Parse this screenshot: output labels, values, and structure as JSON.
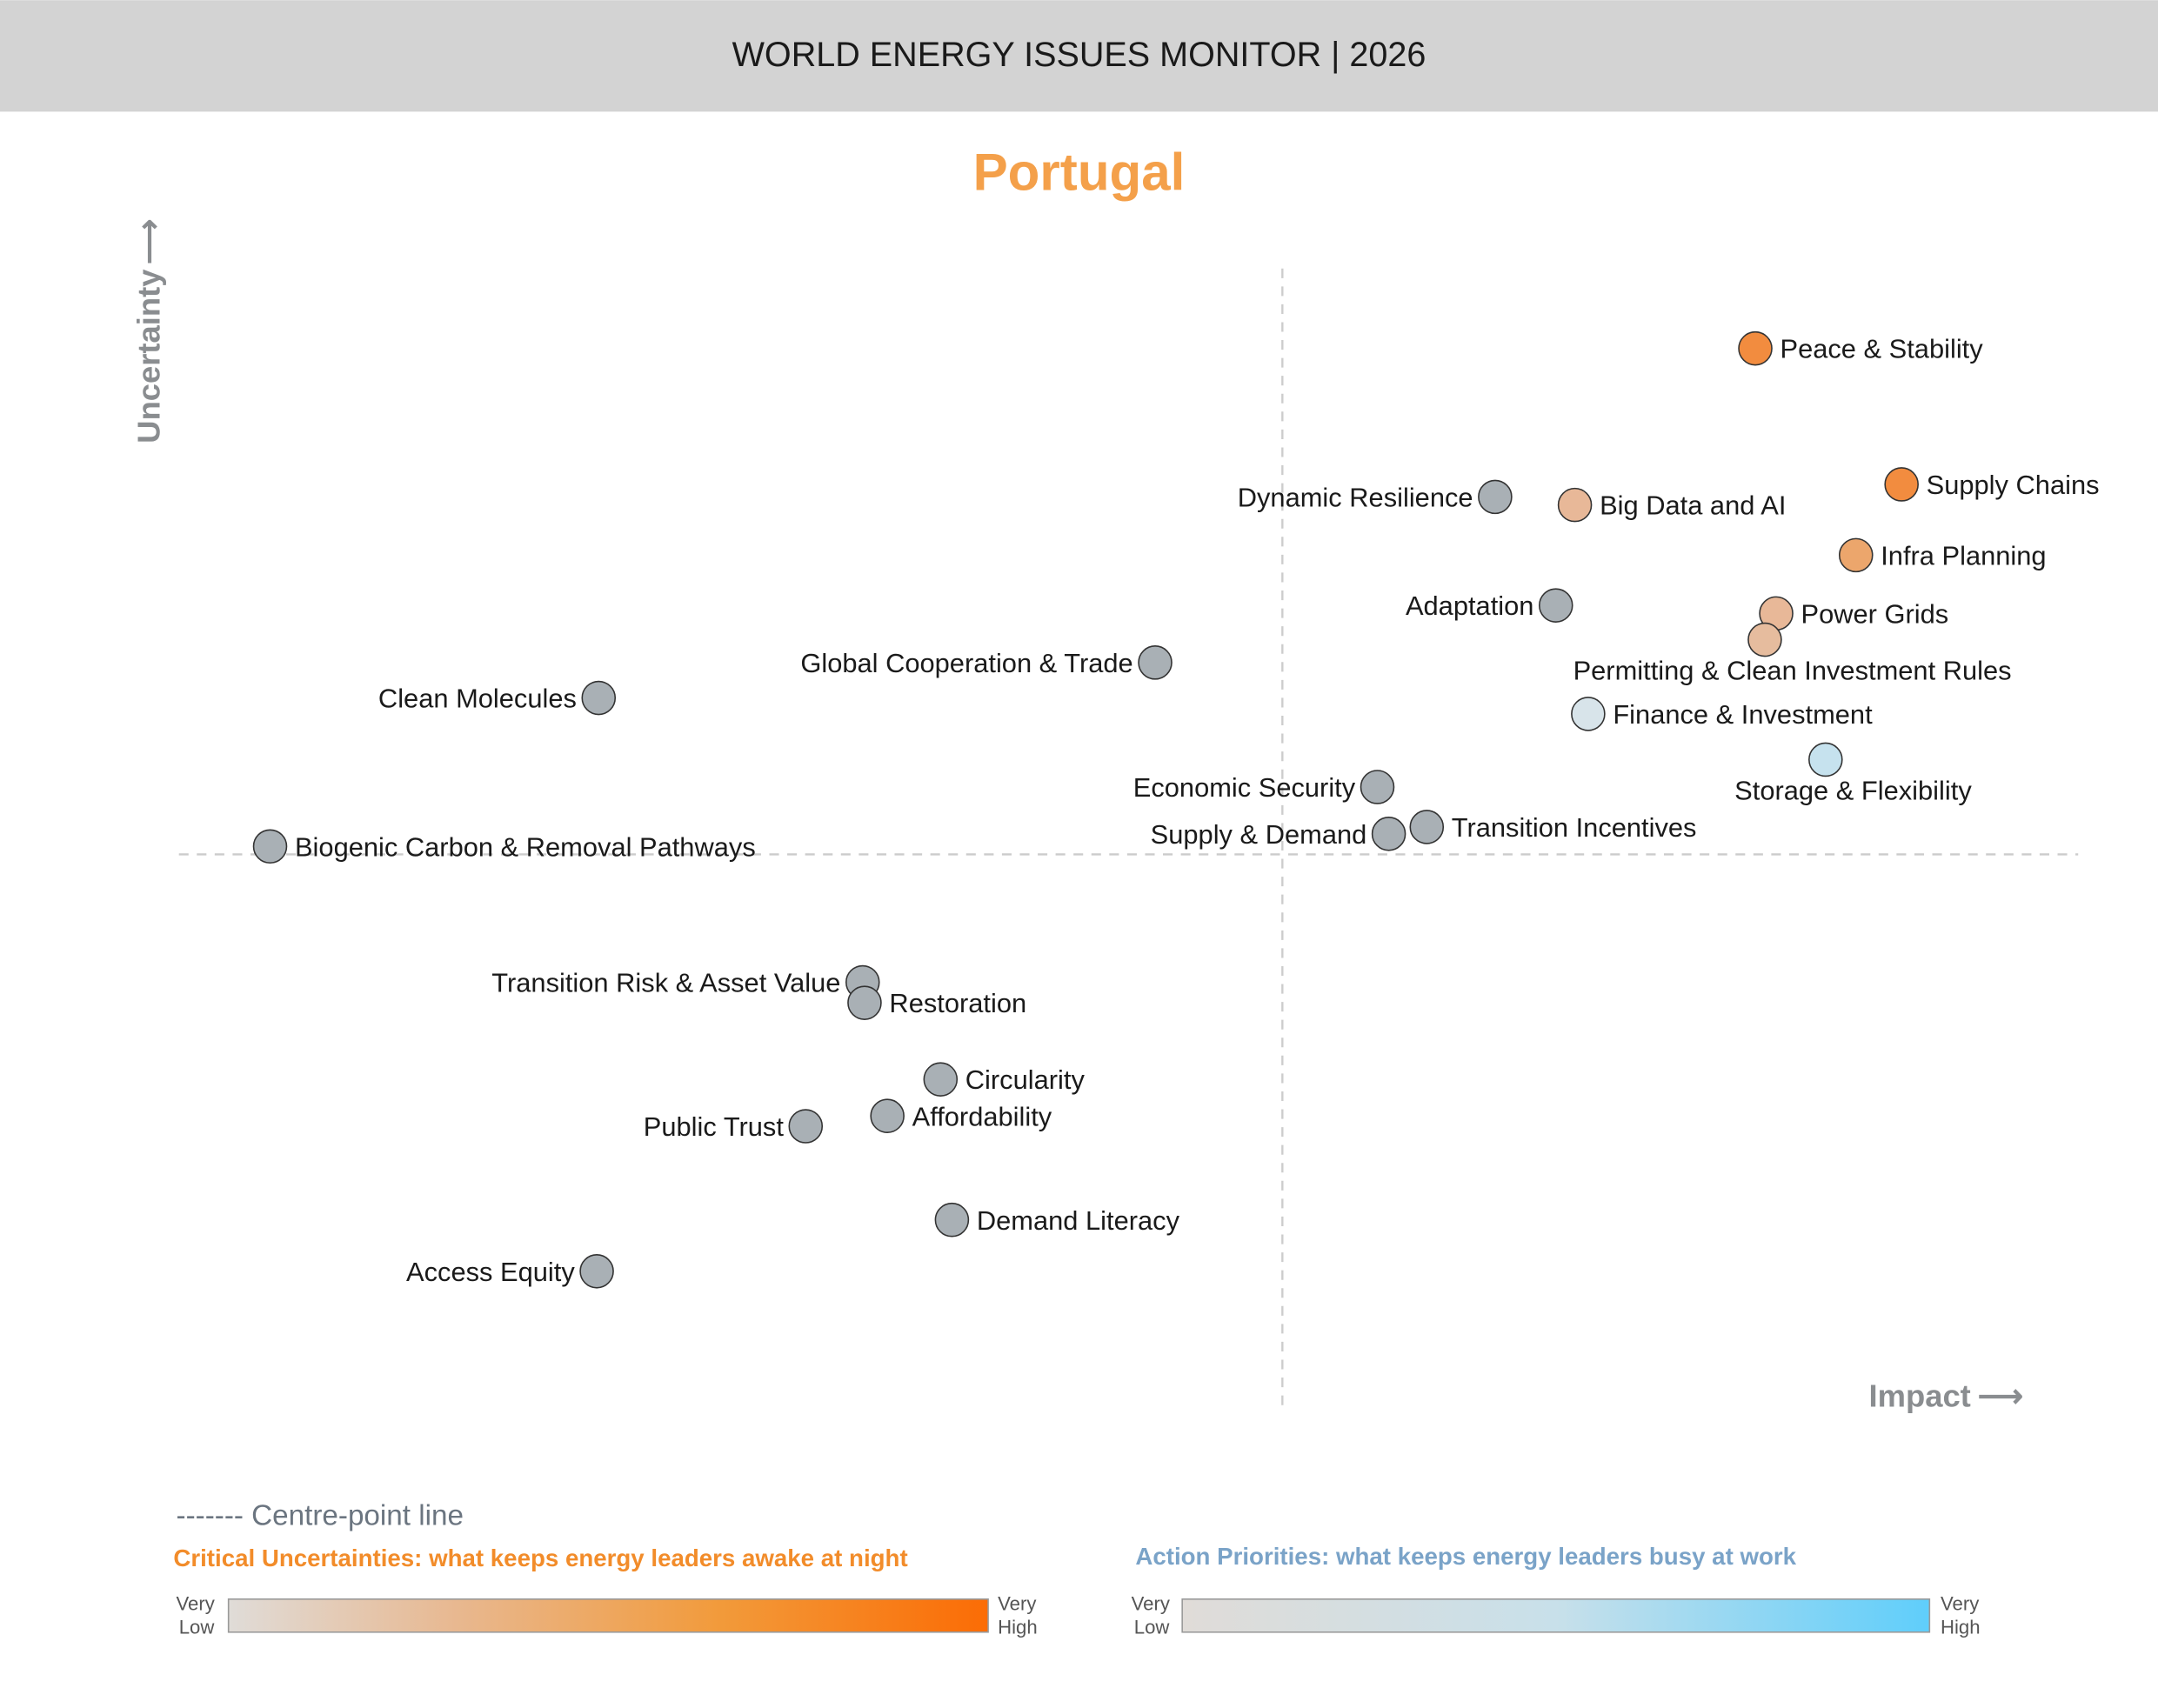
{
  "header": {
    "title": "WORLD ENERGY ISSUES MONITOR | 2026"
  },
  "chart_data": {
    "type": "scatter",
    "title": "Portugal",
    "xlabel": "Impact",
    "ylabel": "Uncertainty",
    "xlim": [
      0,
      100
    ],
    "ylim": [
      0,
      100
    ],
    "centre_point": {
      "x": 58.1,
      "y": 48.7
    },
    "grid": false,
    "points": [
      {
        "label": "Peace & Stability",
        "x": 83.0,
        "y": 93.0,
        "color": "#f28c3f",
        "label_side": "right"
      },
      {
        "label": "Supply Chains",
        "x": 90.7,
        "y": 81.1,
        "color": "#f28c3f",
        "label_side": "right"
      },
      {
        "label": "Dynamic Resilience",
        "x": 69.3,
        "y": 80.0,
        "color": "#a9b0b5",
        "label_side": "left"
      },
      {
        "label": "Big Data and AI",
        "x": 73.5,
        "y": 79.3,
        "color": "#e8b898",
        "label_side": "right"
      },
      {
        "label": "Infra Planning",
        "x": 88.3,
        "y": 74.9,
        "color": "#eca66c",
        "label_side": "right"
      },
      {
        "label": "Adaptation",
        "x": 72.5,
        "y": 70.5,
        "color": "#a9b0b5",
        "label_side": "left"
      },
      {
        "label": "Power Grids",
        "x": 84.1,
        "y": 69.8,
        "color": "#e8b898",
        "label_side": "right"
      },
      {
        "label": "Permitting & Clean Investment Rules",
        "x": 83.5,
        "y": 67.5,
        "color": "#e6bc9e",
        "label_side": "below"
      },
      {
        "label": "Global Cooperation & Trade",
        "x": 51.4,
        "y": 65.5,
        "color": "#a9b0b5",
        "label_side": "left"
      },
      {
        "label": "Clean Molecules",
        "x": 22.1,
        "y": 62.4,
        "color": "#a9b0b5",
        "label_side": "left"
      },
      {
        "label": "Finance & Investment",
        "x": 74.2,
        "y": 61.0,
        "color": "#d8e4ea",
        "label_side": "right"
      },
      {
        "label": "Storage & Flexibility",
        "x": 86.7,
        "y": 57.0,
        "color": "#c6e2ee",
        "label_side": "below"
      },
      {
        "label": "Economic Security",
        "x": 63.1,
        "y": 54.6,
        "color": "#a9b0b5",
        "label_side": "left"
      },
      {
        "label": "Transition Incentives",
        "x": 65.7,
        "y": 51.1,
        "color": "#a9b0b5",
        "label_side": "right"
      },
      {
        "label": "Supply & Demand",
        "x": 63.7,
        "y": 50.5,
        "color": "#a9b0b5",
        "label_side": "left"
      },
      {
        "label": "Biogenic Carbon & Removal Pathways",
        "x": 4.8,
        "y": 49.4,
        "color": "#a9b0b5",
        "label_side": "right"
      },
      {
        "label": "Transition Risk & Asset Value",
        "x": 36.0,
        "y": 37.5,
        "color": "#a9b0b5",
        "label_side": "left"
      },
      {
        "label": "Restoration",
        "x": 36.1,
        "y": 35.7,
        "color": "#a9b0b5",
        "label_side": "right"
      },
      {
        "label": "Circularity",
        "x": 40.1,
        "y": 29.0,
        "color": "#a9b0b5",
        "label_side": "right"
      },
      {
        "label": "Affordability",
        "x": 37.3,
        "y": 25.8,
        "color": "#a9b0b5",
        "label_side": "right"
      },
      {
        "label": "Public Trust",
        "x": 33.0,
        "y": 24.9,
        "color": "#a9b0b5",
        "label_side": "left"
      },
      {
        "label": "Demand Literacy",
        "x": 40.7,
        "y": 16.7,
        "color": "#a9b0b5",
        "label_side": "right"
      },
      {
        "label": "Access Equity",
        "x": 22.0,
        "y": 12.2,
        "color": "#a9b0b5",
        "label_side": "left"
      }
    ]
  },
  "legend": {
    "centre_line": "------- Centre-point line",
    "critical": {
      "title": "Critical Uncertainties: what keeps energy leaders awake at night",
      "low_1": "Very",
      "low_2": "Low",
      "high_1": "Very",
      "high_2": "High",
      "color_low": "#e0dcd8",
      "color_high": "#fb6c05",
      "title_color": "#f28c2a"
    },
    "action": {
      "title": "Action Priorities: what keeps energy leaders busy at work",
      "low_1": "Very",
      "low_2": "Low",
      "high_1": "Very",
      "high_2": "High",
      "color_low": "#e0dcd8",
      "color_high": "#5fcefb",
      "title_color": "#7aa3c8"
    }
  }
}
